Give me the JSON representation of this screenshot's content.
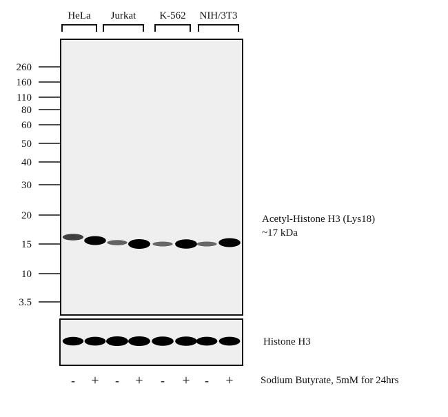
{
  "cell_lines": [
    "HeLa",
    "Jurkat",
    "K-562",
    "NIH/3T3"
  ],
  "markers": [
    "260",
    "160",
    "110",
    "80",
    "60",
    "50",
    "40",
    "30",
    "20",
    "15",
    "10",
    "3.5"
  ],
  "treatments": [
    "-",
    "+",
    "-",
    "+",
    "-",
    "+",
    "-",
    "+"
  ],
  "main_band_intensity": [
    0.55,
    0.9,
    0.35,
    1.0,
    0.3,
    0.95,
    0.3,
    0.9
  ],
  "loading_band_intensity": [
    0.8,
    0.85,
    1.0,
    1.0,
    0.95,
    0.95,
    0.85,
    0.85
  ],
  "labels": {
    "target": "Acetyl-Histone H3 (Lys18)",
    "target_mw": "~17 kDa",
    "loading": "Histone H3",
    "treatment": "Sodium Butyrate,  5mM for 24hrs"
  }
}
